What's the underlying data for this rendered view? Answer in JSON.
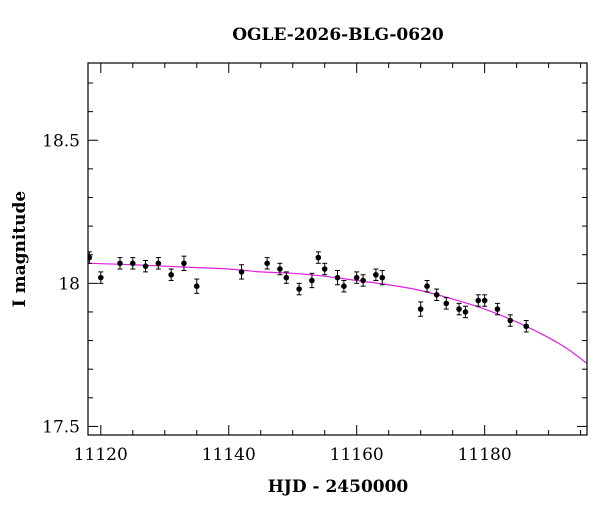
{
  "chart_data": {
    "type": "scatter",
    "title": "OGLE-2026-BLG-0620",
    "xlabel": "HJD - 2450000",
    "ylabel": "I magnitude",
    "xlim": [
      11118,
      11196
    ],
    "ylim": [
      18.77,
      17.47
    ],
    "y_inverted": true,
    "x_ticks": [
      11120,
      11140,
      11160,
      11180
    ],
    "y_ticks": [
      17.5,
      18,
      18.5
    ],
    "y_tick_labels": [
      "17.5",
      "18",
      "18.5"
    ],
    "grid": false,
    "legend": "none",
    "colors": {
      "points": "#000000",
      "fit": "#e020e0",
      "axes": "#000000"
    },
    "series": [
      {
        "kind": "points_with_errorbars",
        "points": [
          {
            "x": 11118.2,
            "y": 18.09,
            "err": 0.02
          },
          {
            "x": 11120.0,
            "y": 18.02,
            "err": 0.02
          },
          {
            "x": 11123.0,
            "y": 18.07,
            "err": 0.02
          },
          {
            "x": 11125.0,
            "y": 18.07,
            "err": 0.02
          },
          {
            "x": 11127.0,
            "y": 18.06,
            "err": 0.02
          },
          {
            "x": 11129.0,
            "y": 18.07,
            "err": 0.02
          },
          {
            "x": 11131.0,
            "y": 18.03,
            "err": 0.02
          },
          {
            "x": 11133.0,
            "y": 18.07,
            "err": 0.025
          },
          {
            "x": 11135.0,
            "y": 17.99,
            "err": 0.025
          },
          {
            "x": 11142.0,
            "y": 18.04,
            "err": 0.025
          },
          {
            "x": 11146.0,
            "y": 18.07,
            "err": 0.02
          },
          {
            "x": 11148.0,
            "y": 18.05,
            "err": 0.02
          },
          {
            "x": 11149.0,
            "y": 18.02,
            "err": 0.02
          },
          {
            "x": 11151.0,
            "y": 17.98,
            "err": 0.02
          },
          {
            "x": 11153.0,
            "y": 18.01,
            "err": 0.025
          },
          {
            "x": 11154.0,
            "y": 18.09,
            "err": 0.02
          },
          {
            "x": 11155.0,
            "y": 18.05,
            "err": 0.02
          },
          {
            "x": 11157.0,
            "y": 18.02,
            "err": 0.025
          },
          {
            "x": 11158.0,
            "y": 17.99,
            "err": 0.02
          },
          {
            "x": 11160.0,
            "y": 18.02,
            "err": 0.02
          },
          {
            "x": 11161.0,
            "y": 18.01,
            "err": 0.02
          },
          {
            "x": 11163.0,
            "y": 18.03,
            "err": 0.02
          },
          {
            "x": 11164.0,
            "y": 18.02,
            "err": 0.025
          },
          {
            "x": 11170.0,
            "y": 17.91,
            "err": 0.025
          },
          {
            "x": 11171.0,
            "y": 17.99,
            "err": 0.02
          },
          {
            "x": 11172.5,
            "y": 17.96,
            "err": 0.02
          },
          {
            "x": 11174.0,
            "y": 17.93,
            "err": 0.02
          },
          {
            "x": 11176.0,
            "y": 17.91,
            "err": 0.02
          },
          {
            "x": 11177.0,
            "y": 17.9,
            "err": 0.02
          },
          {
            "x": 11179.0,
            "y": 17.94,
            "err": 0.02
          },
          {
            "x": 11180.0,
            "y": 17.94,
            "err": 0.02
          },
          {
            "x": 11182.0,
            "y": 17.91,
            "err": 0.02
          },
          {
            "x": 11184.0,
            "y": 17.87,
            "err": 0.02
          },
          {
            "x": 11186.5,
            "y": 17.85,
            "err": 0.02
          }
        ]
      },
      {
        "kind": "model_curve",
        "x": [
          11118,
          11125,
          11130,
          11135,
          11140,
          11145,
          11150,
          11155,
          11160,
          11165,
          11170,
          11175,
          11180,
          11185,
          11190,
          11193,
          11196
        ],
        "y": [
          18.07,
          18.065,
          18.06,
          18.055,
          18.05,
          18.04,
          18.035,
          18.025,
          18.01,
          17.995,
          17.975,
          17.945,
          17.91,
          17.865,
          17.81,
          17.77,
          17.72
        ]
      }
    ]
  }
}
